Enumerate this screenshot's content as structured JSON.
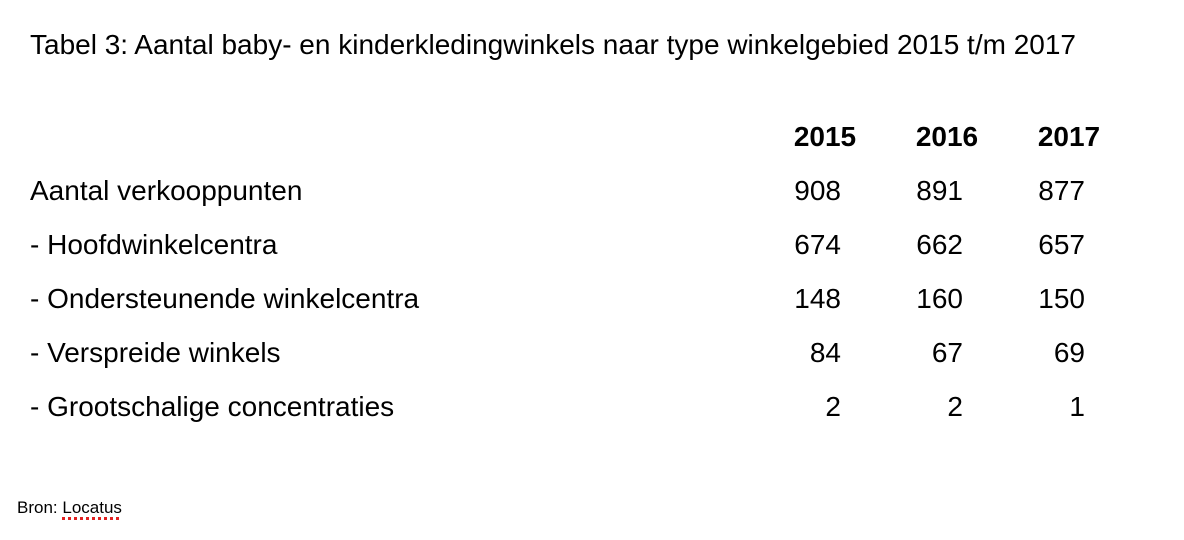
{
  "title": "Tabel 3: Aantal baby- en kinderkledingwinkels naar type winkelgebied 2015 t/m 2017",
  "table": {
    "years": [
      "2015",
      "2016",
      "2017"
    ],
    "rows": [
      {
        "label": "Aantal verkooppunten",
        "values": [
          "908",
          "891",
          "877"
        ]
      },
      {
        "label": "- Hoofdwinkelcentra",
        "values": [
          "674",
          "662",
          "657"
        ]
      },
      {
        "label": "- Ondersteunende winkelcentra",
        "values": [
          "148",
          "160",
          "150"
        ]
      },
      {
        "label": "- Verspreide winkels",
        "values": [
          "84",
          "67",
          "69"
        ]
      },
      {
        "label": "- Grootschalige concentraties",
        "values": [
          "2",
          "2",
          "1"
        ]
      }
    ]
  },
  "source": {
    "prefix": "Bron: ",
    "name": "Locatus"
  }
}
